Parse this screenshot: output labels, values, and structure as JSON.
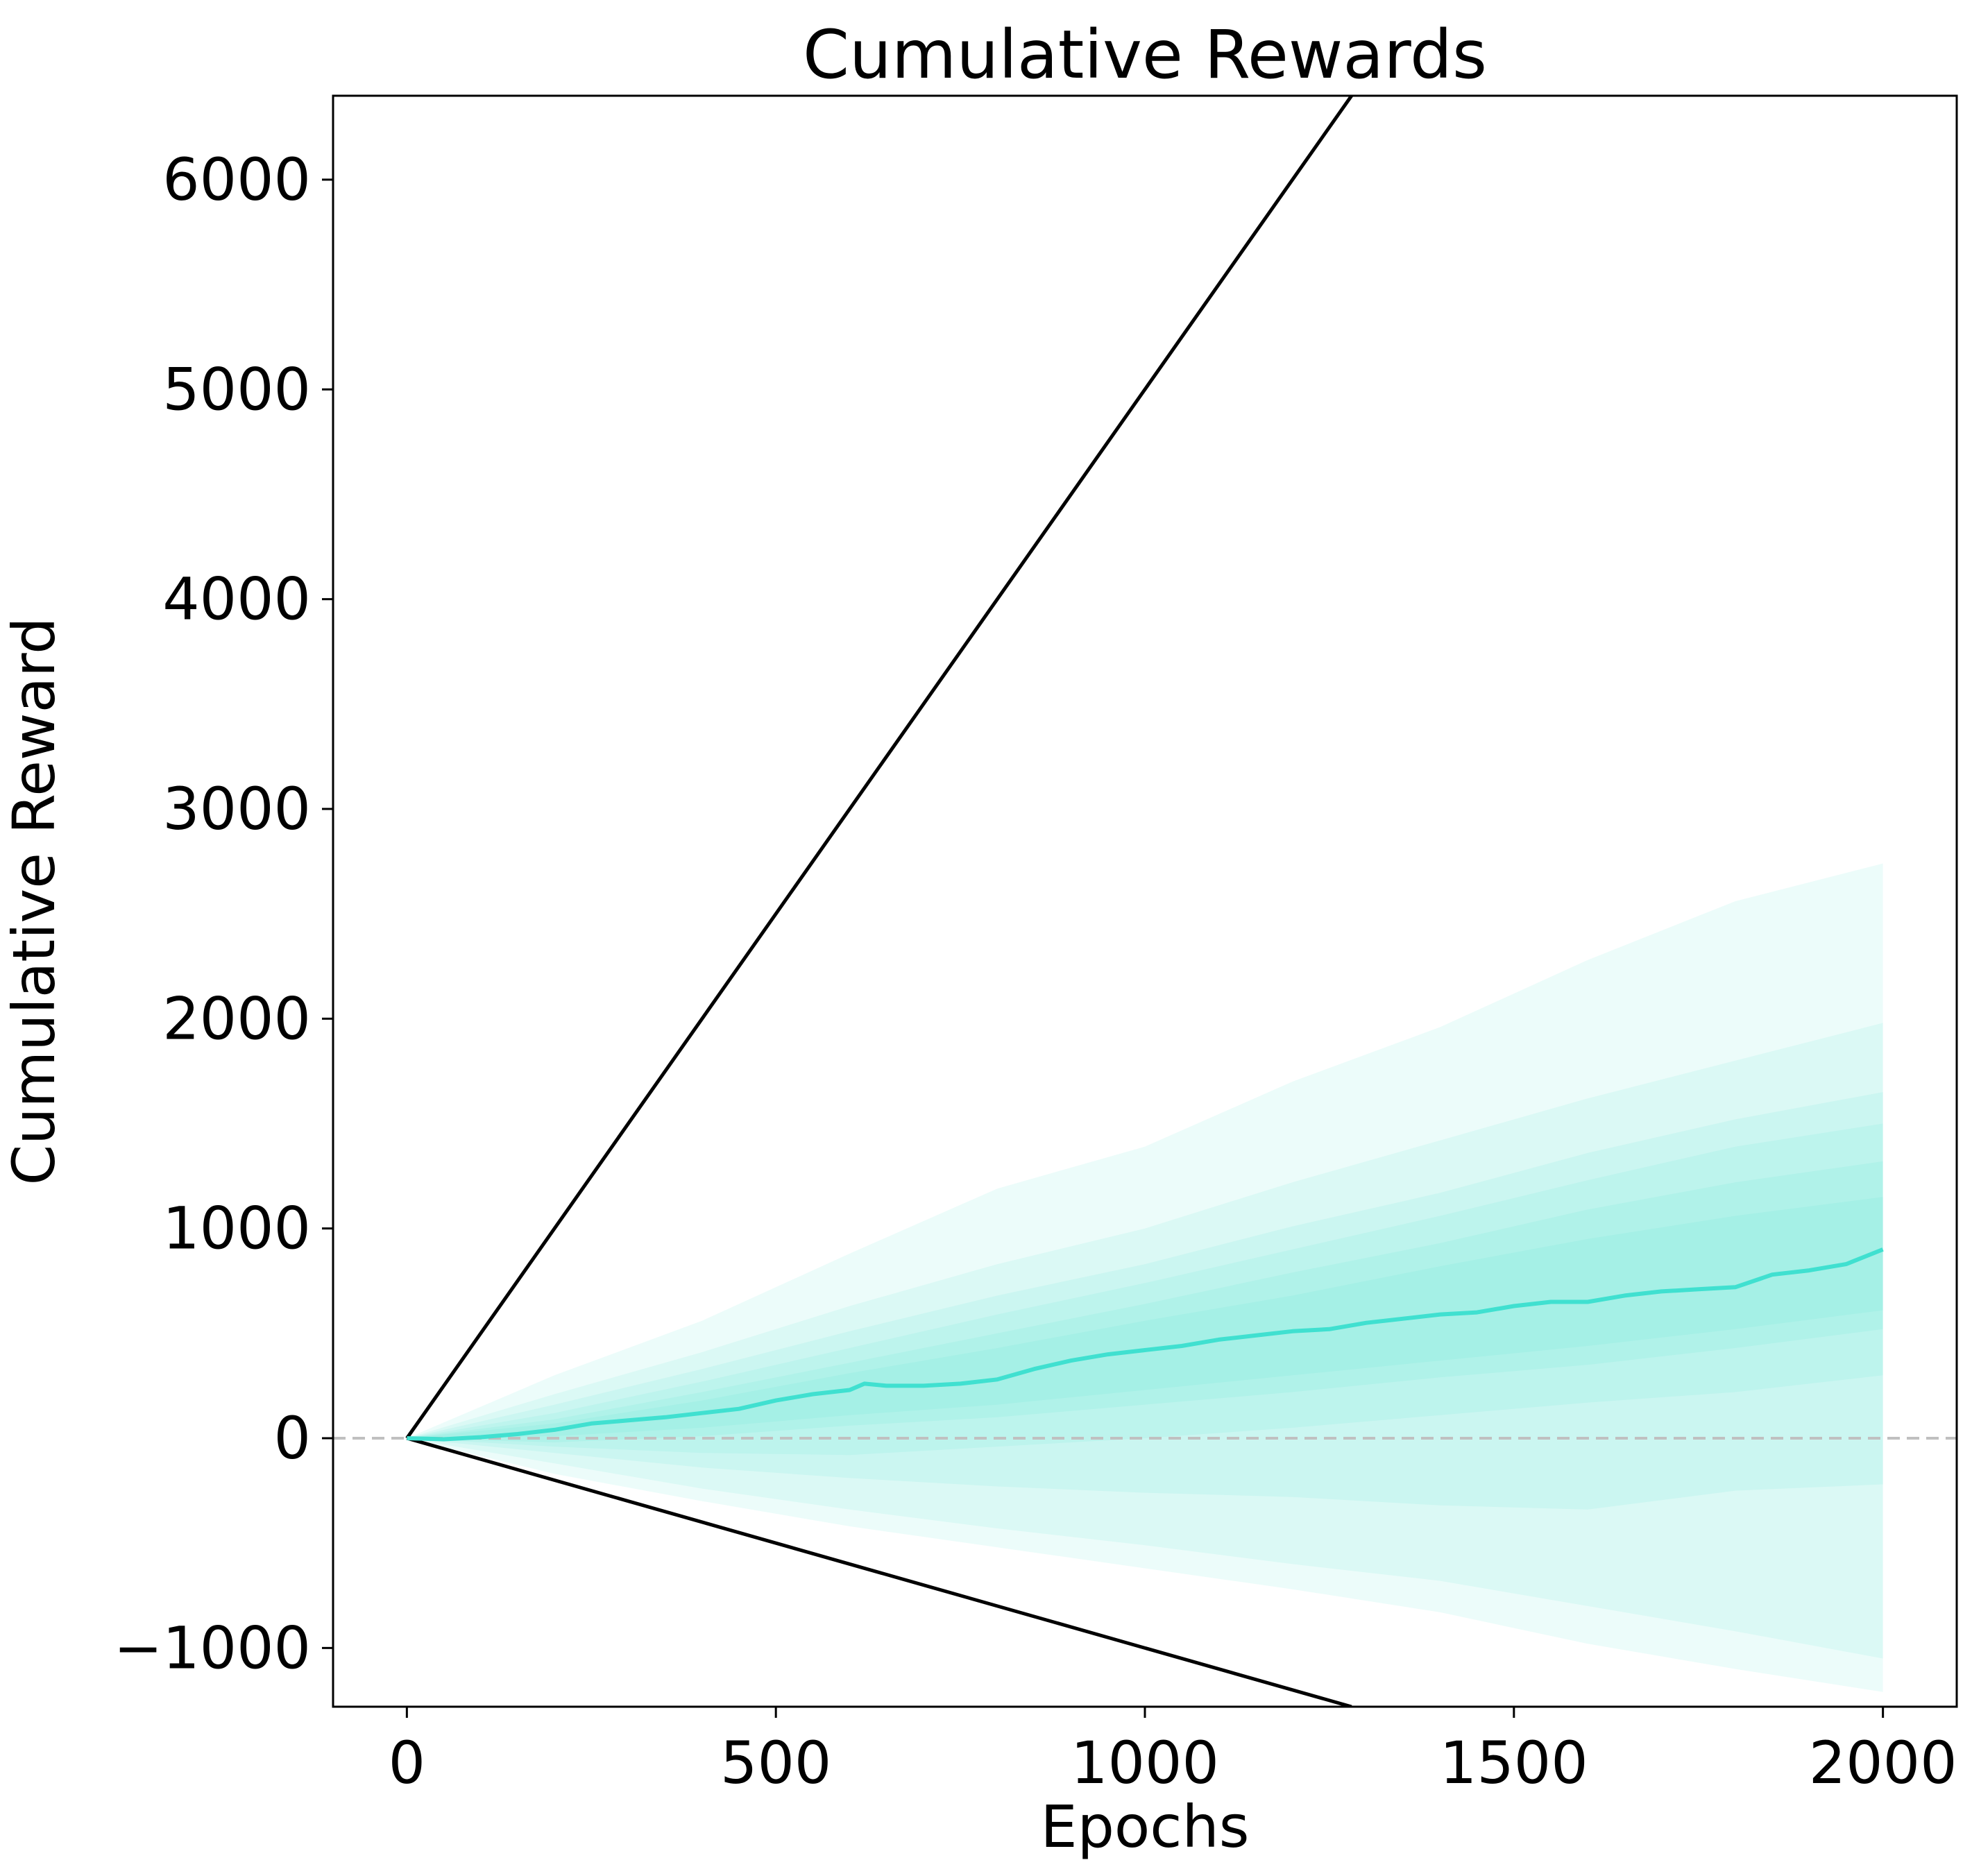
{
  "chart_data": {
    "type": "line",
    "title": "Cumulative Rewards",
    "xlabel": "Epochs",
    "ylabel": "Cumulative Reward",
    "xlim": [
      -100,
      2100
    ],
    "ylim": [
      -1280,
      6400
    ],
    "xticks": [
      0,
      500,
      1000,
      1500,
      2000
    ],
    "yticks": [
      -1000,
      0,
      1000,
      2000,
      3000,
      4000,
      5000,
      6000
    ],
    "xtick_labels": [
      "0",
      "500",
      "1000",
      "1500",
      "2000"
    ],
    "ytick_labels": [
      "−1000",
      "0",
      "1000",
      "2000",
      "3000",
      "4000",
      "5000",
      "6000"
    ],
    "grid": false,
    "reference_line": {
      "y": 0,
      "style": "dashed",
      "color": "#c0c0c0"
    },
    "bound_lines": {
      "color": "#000000",
      "upper": {
        "x": [
          0,
          1280
        ],
        "y": [
          0,
          6400
        ]
      },
      "lower": {
        "x": [
          0,
          1280
        ],
        "y": [
          0,
          -1280
        ]
      }
    },
    "mean_series": {
      "color": "#40e0d0",
      "x": [
        0,
        50,
        100,
        150,
        200,
        250,
        300,
        350,
        400,
        450,
        500,
        550,
        600,
        620,
        650,
        700,
        750,
        800,
        850,
        900,
        950,
        1000,
        1050,
        1100,
        1150,
        1200,
        1250,
        1300,
        1350,
        1400,
        1450,
        1500,
        1550,
        1600,
        1650,
        1700,
        1750,
        1800,
        1850,
        1900,
        1950,
        2000
      ],
      "y": [
        0,
        -5,
        5,
        20,
        40,
        70,
        85,
        100,
        120,
        140,
        180,
        210,
        230,
        260,
        250,
        250,
        260,
        280,
        330,
        370,
        400,
        420,
        440,
        470,
        490,
        510,
        520,
        550,
        570,
        590,
        600,
        630,
        650,
        650,
        680,
        700,
        710,
        720,
        780,
        800,
        830,
        900
      ]
    },
    "bands": {
      "color": "#40e0d0",
      "x": [
        0,
        200,
        400,
        600,
        800,
        1000,
        1200,
        1400,
        1600,
        1800,
        2000
      ],
      "levels": [
        {
          "upper": [
            0,
            300,
            560,
            880,
            1190,
            1390,
            1700,
            1960,
            2280,
            2560,
            2740
          ],
          "lower": [
            0,
            -170,
            -300,
            -420,
            -520,
            -620,
            -720,
            -830,
            -980,
            -1100,
            -1210
          ],
          "opacity": 0.1
        },
        {
          "upper": [
            0,
            210,
            410,
            630,
            830,
            1000,
            1220,
            1420,
            1620,
            1800,
            1980
          ],
          "lower": [
            0,
            -120,
            -240,
            -340,
            -430,
            -510,
            -600,
            -680,
            -800,
            -920,
            -1050
          ],
          "opacity": 0.1
        },
        {
          "upper": [
            0,
            160,
            330,
            510,
            680,
            830,
            1010,
            1170,
            1360,
            1520,
            1650
          ],
          "lower": [
            0,
            -70,
            -140,
            -190,
            -230,
            -260,
            -280,
            -320,
            -340,
            -250,
            -220
          ],
          "opacity": 0.1
        },
        {
          "upper": [
            0,
            120,
            270,
            430,
            590,
            740,
            900,
            1060,
            1230,
            1390,
            1500
          ],
          "lower": [
            0,
            -40,
            -70,
            -80,
            -40,
            0,
            50,
            110,
            170,
            220,
            300
          ],
          "opacity": 0.1
        },
        {
          "upper": [
            0,
            90,
            220,
            360,
            500,
            640,
            790,
            930,
            1090,
            1220,
            1320
          ],
          "lower": [
            0,
            -20,
            10,
            60,
            100,
            160,
            220,
            290,
            350,
            430,
            520
          ],
          "opacity": 0.1
        },
        {
          "upper": [
            0,
            70,
            180,
            310,
            430,
            560,
            680,
            820,
            950,
            1060,
            1150
          ],
          "lower": [
            0,
            10,
            50,
            110,
            160,
            230,
            300,
            370,
            440,
            520,
            610
          ],
          "opacity": 0.1
        }
      ]
    }
  }
}
